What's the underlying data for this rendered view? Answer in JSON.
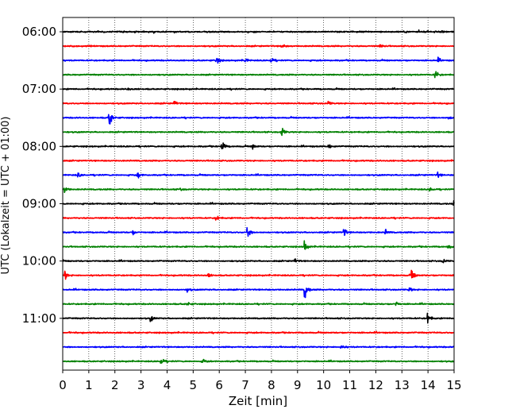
{
  "chart_data": {
    "type": "line",
    "title": "",
    "xlabel": "Zeit  [min]",
    "ylabel": "UTC (Lokalzeit = UTC + 01:00)",
    "xlim": [
      0,
      15
    ],
    "x_ticks": [
      "0",
      "1",
      "2",
      "3",
      "4",
      "5",
      "6",
      "7",
      "8",
      "9",
      "10",
      "11",
      "12",
      "13",
      "14",
      "15"
    ],
    "y_tick_labels": [
      "06:00",
      "07:00",
      "08:00",
      "09:00",
      "10:00",
      "11:00"
    ],
    "grid": "vertical dotted at each minute",
    "colors": [
      "#000000",
      "#ff0000",
      "#0000ff",
      "#008000"
    ],
    "traces": [
      {
        "start": "06:00",
        "color": "#000000",
        "events": [
          [
            13.1,
            0.25
          ],
          [
            14.5,
            0.3
          ]
        ]
      },
      {
        "start": "06:15",
        "color": "#ff0000",
        "events": [
          [
            8.4,
            0.5
          ],
          [
            12.2,
            0.3
          ]
        ]
      },
      {
        "start": "06:30",
        "color": "#0000ff",
        "events": [
          [
            5.9,
            0.8
          ],
          [
            7.0,
            0.35
          ],
          [
            8.0,
            0.4
          ],
          [
            14.4,
            0.3
          ]
        ]
      },
      {
        "start": "06:45",
        "color": "#008000",
        "events": [
          [
            14.3,
            0.7
          ]
        ]
      },
      {
        "start": "07:00",
        "color": "#000000",
        "events": [
          [
            2.5,
            0.25
          ]
        ]
      },
      {
        "start": "07:15",
        "color": "#ff0000",
        "events": [
          [
            4.3,
            0.35
          ],
          [
            10.2,
            0.3
          ]
        ]
      },
      {
        "start": "07:30",
        "color": "#0000ff",
        "events": [
          [
            1.8,
            1.5
          ],
          [
            14.8,
            0.25
          ]
        ]
      },
      {
        "start": "07:45",
        "color": "#008000",
        "events": [
          [
            8.4,
            0.9
          ]
        ]
      },
      {
        "start": "08:00",
        "color": "#000000",
        "events": [
          [
            6.1,
            1.3
          ],
          [
            7.3,
            0.4
          ],
          [
            10.2,
            0.4
          ]
        ]
      },
      {
        "start": "08:15",
        "color": "#ff0000",
        "events": []
      },
      {
        "start": "08:30",
        "color": "#0000ff",
        "events": [
          [
            0.6,
            0.35
          ],
          [
            2.9,
            0.5
          ],
          [
            14.4,
            0.4
          ]
        ]
      },
      {
        "start": "08:45",
        "color": "#008000",
        "events": [
          [
            0.1,
            0.6
          ],
          [
            4.5,
            0.3
          ],
          [
            14.1,
            0.35
          ]
        ]
      },
      {
        "start": "09:00",
        "color": "#000000",
        "events": [
          [
            15.0,
            0.3
          ]
        ]
      },
      {
        "start": "09:15",
        "color": "#ff0000",
        "events": [
          [
            5.9,
            0.5
          ]
        ]
      },
      {
        "start": "09:30",
        "color": "#0000ff",
        "events": [
          [
            7.1,
            0.9
          ],
          [
            10.8,
            0.6
          ],
          [
            12.4,
            0.3
          ],
          [
            2.7,
            0.3
          ]
        ]
      },
      {
        "start": "09:45",
        "color": "#008000",
        "events": [
          [
            9.3,
            0.9
          ],
          [
            14.8,
            0.3
          ]
        ]
      },
      {
        "start": "10:00",
        "color": "#000000",
        "events": [
          [
            8.9,
            0.35
          ],
          [
            14.6,
            0.3
          ]
        ]
      },
      {
        "start": "10:15",
        "color": "#ff0000",
        "events": [
          [
            0.1,
            0.7
          ],
          [
            13.4,
            0.8
          ],
          [
            5.6,
            0.3
          ]
        ]
      },
      {
        "start": "10:30",
        "color": "#0000ff",
        "events": [
          [
            9.3,
            1.6
          ],
          [
            4.8,
            0.35
          ],
          [
            13.3,
            0.35
          ]
        ]
      },
      {
        "start": "10:45",
        "color": "#008000",
        "events": [
          [
            4.8,
            0.3
          ],
          [
            12.8,
            0.3
          ]
        ]
      },
      {
        "start": "11:00",
        "color": "#000000",
        "events": [
          [
            3.4,
            0.4
          ],
          [
            14.0,
            1.0
          ]
        ]
      },
      {
        "start": "11:15",
        "color": "#ff0000",
        "events": []
      },
      {
        "start": "11:30",
        "color": "#0000ff",
        "events": [
          [
            10.7,
            0.4
          ]
        ]
      },
      {
        "start": "11:45",
        "color": "#008000",
        "events": [
          [
            3.8,
            0.5
          ],
          [
            5.4,
            0.3
          ]
        ]
      }
    ]
  }
}
